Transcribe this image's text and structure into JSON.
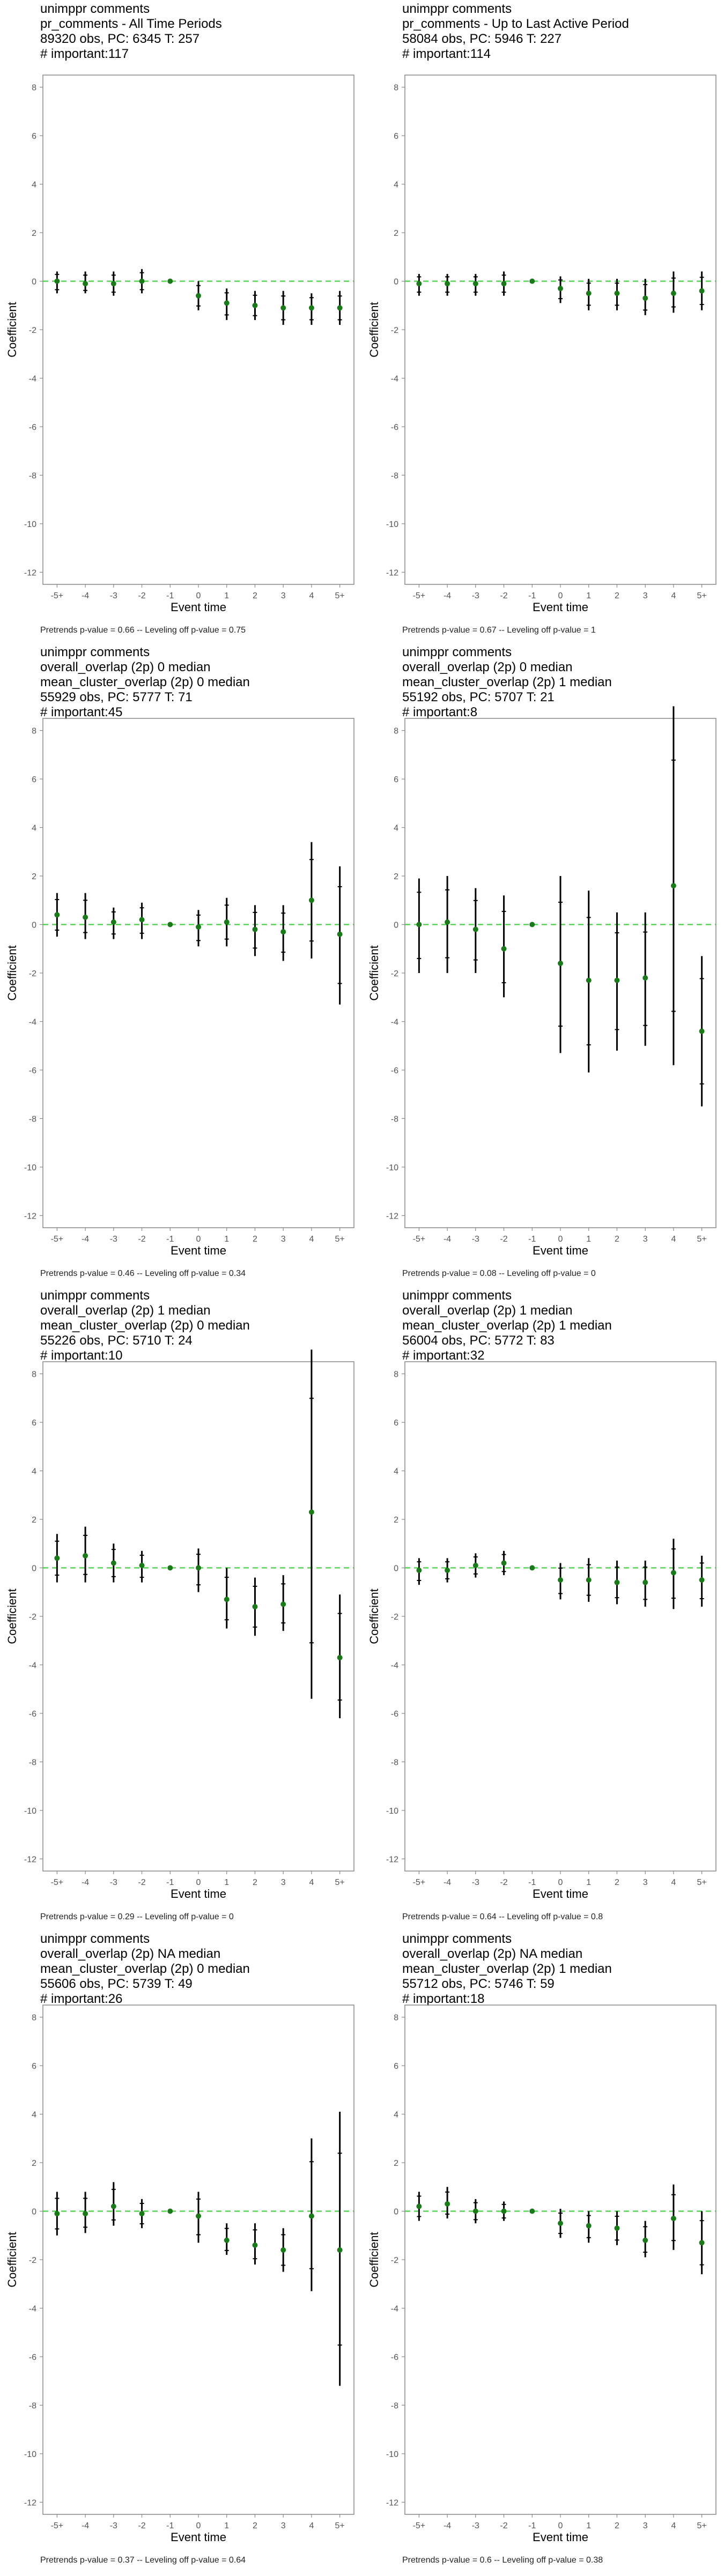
{
  "axis": {
    "xlabel": "Event time",
    "ylabel": "Coefficient",
    "yticks": [
      "8",
      "6",
      "4",
      "2",
      "0",
      "-2",
      "-4",
      "-6",
      "-8",
      "-10",
      "-12"
    ],
    "xticks": [
      "-5+",
      "-4",
      "-3",
      "-2",
      "-1",
      "0",
      "1",
      "2",
      "3",
      "4",
      "5+"
    ]
  },
  "colors": {
    "point": "#1a7a1a",
    "zero_line": "#33cc33",
    "errorbar": "#000000",
    "panel_border": "#888888",
    "tick_text": "#555555"
  },
  "chart_data": [
    {
      "type": "scatter",
      "title_lines": [
        " unimppr comments",
        "pr_comments - All Time Periods",
        "89320 obs, PC: 6345 T: 257",
        "# important:117"
      ],
      "footer": "Pretrends p-value = 0.66 -- Leveling off p-value = 0.75",
      "xlabel": "Event time",
      "ylabel": "Coefficient",
      "ylim": [
        -12.5,
        8.5
      ],
      "x": [
        "-5+",
        "-4",
        "-3",
        "-2",
        "-1",
        "0",
        "1",
        "2",
        "3",
        "4",
        "5+"
      ],
      "y": [
        0.0,
        -0.1,
        -0.1,
        0.0,
        0.0,
        -0.6,
        -0.9,
        -1.0,
        -1.1,
        -1.1,
        -1.1
      ],
      "ci_low": [
        -0.5,
        -0.5,
        -0.6,
        -0.5,
        0.0,
        -1.2,
        -1.6,
        -1.6,
        -1.8,
        -1.8,
        -1.8
      ],
      "ci_high": [
        0.4,
        0.4,
        0.4,
        0.5,
        0.0,
        0.0,
        -0.3,
        -0.4,
        -0.4,
        -0.5,
        -0.4
      ]
    },
    {
      "type": "scatter",
      "title_lines": [
        " unimppr comments",
        "pr_comments - Up to Last Active Period",
        "58084 obs, PC: 5946 T: 227",
        "# important:114"
      ],
      "footer": "Pretrends p-value = 0.67 -- Leveling off p-value = 1",
      "xlabel": "Event time",
      "ylabel": "Coefficient",
      "ylim": [
        -12.5,
        8.5
      ],
      "x": [
        "-5+",
        "-4",
        "-3",
        "-2",
        "-1",
        "0",
        "1",
        "2",
        "3",
        "4",
        "5+"
      ],
      "y": [
        -0.1,
        -0.1,
        -0.1,
        -0.1,
        0.0,
        -0.3,
        -0.5,
        -0.5,
        -0.7,
        -0.5,
        -0.4
      ],
      "ci_low": [
        -0.6,
        -0.6,
        -0.6,
        -0.6,
        0.0,
        -0.9,
        -1.2,
        -1.2,
        -1.4,
        -1.3,
        -1.2
      ],
      "ci_high": [
        0.3,
        0.3,
        0.3,
        0.4,
        0.0,
        0.2,
        0.1,
        0.1,
        0.1,
        0.4,
        0.4
      ]
    },
    {
      "type": "scatter",
      "title_lines": [
        " unimppr comments",
        "overall_overlap (2p) 0 median",
        "mean_cluster_overlap (2p) 0 median",
        "55929 obs, PC: 5777 T: 71",
        "# important:45"
      ],
      "footer": "Pretrends p-value = 0.46 -- Leveling off p-value = 0.34",
      "xlabel": "Event time",
      "ylabel": "Coefficient",
      "ylim": [
        -12.5,
        8.5
      ],
      "x": [
        "-5+",
        "-4",
        "-3",
        "-2",
        "-1",
        "0",
        "1",
        "2",
        "3",
        "4",
        "5+"
      ],
      "y": [
        0.4,
        0.3,
        0.1,
        0.2,
        0.0,
        -0.1,
        0.1,
        -0.2,
        -0.3,
        1.0,
        -0.4
      ],
      "ci_low": [
        -0.5,
        -0.6,
        -0.6,
        -0.6,
        0.0,
        -0.9,
        -0.9,
        -1.3,
        -1.5,
        -1.4,
        -3.3
      ],
      "ci_high": [
        1.3,
        1.3,
        0.7,
        0.9,
        0.0,
        0.6,
        1.1,
        0.8,
        0.8,
        3.4,
        2.4
      ]
    },
    {
      "type": "scatter",
      "title_lines": [
        " unimppr comments",
        "overall_overlap (2p) 0 median",
        "mean_cluster_overlap (2p) 1 median",
        "55192 obs, PC: 5707 T: 21",
        "# important:8"
      ],
      "footer": "Pretrends p-value = 0.08 -- Leveling off p-value = 0",
      "xlabel": "Event time",
      "ylabel": "Coefficient",
      "ylim": [
        -12.5,
        8.5
      ],
      "x": [
        "-5+",
        "-4",
        "-3",
        "-2",
        "-1",
        "0",
        "1",
        "2",
        "3",
        "4",
        "5+"
      ],
      "y": [
        0.0,
        0.1,
        -0.2,
        -1.0,
        0.0,
        -1.6,
        -2.3,
        -2.3,
        -2.2,
        1.6,
        -4.4
      ],
      "ci_low": [
        -2.0,
        -2.0,
        -2.0,
        -3.0,
        0.0,
        -5.3,
        -6.1,
        -5.2,
        -5.0,
        -5.8,
        -7.5
      ],
      "ci_high": [
        1.9,
        2.0,
        1.5,
        1.2,
        0.0,
        2.0,
        1.4,
        0.5,
        0.5,
        9.0,
        -1.3
      ]
    },
    {
      "type": "scatter",
      "title_lines": [
        " unimppr comments",
        "overall_overlap (2p) 1 median",
        "mean_cluster_overlap (2p) 0 median",
        "55226 obs, PC: 5710 T: 24",
        "# important:10"
      ],
      "footer": "Pretrends p-value = 0.29 -- Leveling off p-value = 0",
      "xlabel": "Event time",
      "ylabel": "Coefficient",
      "ylim": [
        -12.5,
        8.5
      ],
      "x": [
        "-5+",
        "-4",
        "-3",
        "-2",
        "-1",
        "0",
        "1",
        "2",
        "3",
        "4",
        "5+"
      ],
      "y": [
        0.4,
        0.5,
        0.2,
        0.1,
        0.0,
        0.0,
        -1.3,
        -1.6,
        -1.5,
        2.3,
        -3.7
      ],
      "ci_low": [
        -0.6,
        -0.6,
        -0.6,
        -0.6,
        0.0,
        -1.0,
        -2.5,
        -2.8,
        -2.6,
        -5.4,
        -6.2
      ],
      "ci_high": [
        1.4,
        1.7,
        1.0,
        0.7,
        0.0,
        0.8,
        0.0,
        -0.4,
        -0.3,
        9.0,
        -1.1
      ]
    },
    {
      "type": "scatter",
      "title_lines": [
        " unimppr comments",
        "overall_overlap (2p) 1 median",
        "mean_cluster_overlap (2p) 1 median",
        "56004 obs, PC: 5772 T: 83",
        "# important:32"
      ],
      "footer": "Pretrends p-value = 0.64 -- Leveling off p-value = 0.8",
      "xlabel": "Event time",
      "ylabel": "Coefficient",
      "ylim": [
        -12.5,
        8.5
      ],
      "x": [
        "-5+",
        "-4",
        "-3",
        "-2",
        "-1",
        "0",
        "1",
        "2",
        "3",
        "4",
        "5+"
      ],
      "y": [
        -0.1,
        -0.1,
        0.1,
        0.2,
        0.0,
        -0.5,
        -0.5,
        -0.6,
        -0.6,
        -0.2,
        -0.5
      ],
      "ci_low": [
        -0.7,
        -0.6,
        -0.4,
        -0.3,
        0.0,
        -1.3,
        -1.4,
        -1.5,
        -1.6,
        -1.7,
        -1.6
      ],
      "ci_high": [
        0.4,
        0.4,
        0.6,
        0.7,
        0.0,
        0.2,
        0.4,
        0.3,
        0.3,
        1.2,
        0.5
      ]
    },
    {
      "type": "scatter",
      "title_lines": [
        " unimppr comments",
        "overall_overlap (2p) NA median",
        "mean_cluster_overlap (2p) 0 median",
        "55606 obs, PC: 5739 T: 49",
        "# important:26"
      ],
      "footer": "Pretrends p-value = 0.37 -- Leveling off p-value = 0.64",
      "xlabel": "Event time",
      "ylabel": "Coefficient",
      "ylim": [
        -12.5,
        8.5
      ],
      "x": [
        "-5+",
        "-4",
        "-3",
        "-2",
        "-1",
        "0",
        "1",
        "2",
        "3",
        "4",
        "5+"
      ],
      "y": [
        -0.1,
        -0.1,
        0.2,
        -0.1,
        0.0,
        -0.2,
        -1.2,
        -1.4,
        -1.6,
        -0.2,
        -1.6
      ],
      "ci_low": [
        -1.0,
        -0.9,
        -0.6,
        -0.7,
        0.0,
        -1.3,
        -1.8,
        -2.2,
        -2.5,
        -3.3,
        -7.2
      ],
      "ci_high": [
        0.8,
        0.8,
        1.2,
        0.5,
        0.0,
        0.8,
        -0.5,
        -0.5,
        -0.7,
        3.0,
        4.1
      ]
    },
    {
      "type": "scatter",
      "title_lines": [
        " unimppr comments",
        "overall_overlap (2p) NA median",
        "mean_cluster_overlap (2p) 1 median",
        "55712 obs, PC: 5746 T: 59",
        "# important:18"
      ],
      "footer": "Pretrends p-value = 0.6 -- Leveling off p-value = 0.38",
      "xlabel": "Event time",
      "ylabel": "Coefficient",
      "ylim": [
        -12.5,
        8.5
      ],
      "x": [
        "-5+",
        "-4",
        "-3",
        "-2",
        "-1",
        "0",
        "1",
        "2",
        "3",
        "4",
        "5+"
      ],
      "y": [
        0.2,
        0.3,
        0.0,
        0.0,
        0.0,
        -0.5,
        -0.6,
        -0.7,
        -1.2,
        -0.3,
        -1.3
      ],
      "ci_low": [
        -0.4,
        -0.3,
        -0.5,
        -0.4,
        0.0,
        -1.1,
        -1.3,
        -1.4,
        -1.9,
        -1.6,
        -2.6
      ],
      "ci_high": [
        0.8,
        1.0,
        0.5,
        0.4,
        0.0,
        0.1,
        0.0,
        0.0,
        -0.4,
        1.1,
        0.0
      ]
    }
  ]
}
